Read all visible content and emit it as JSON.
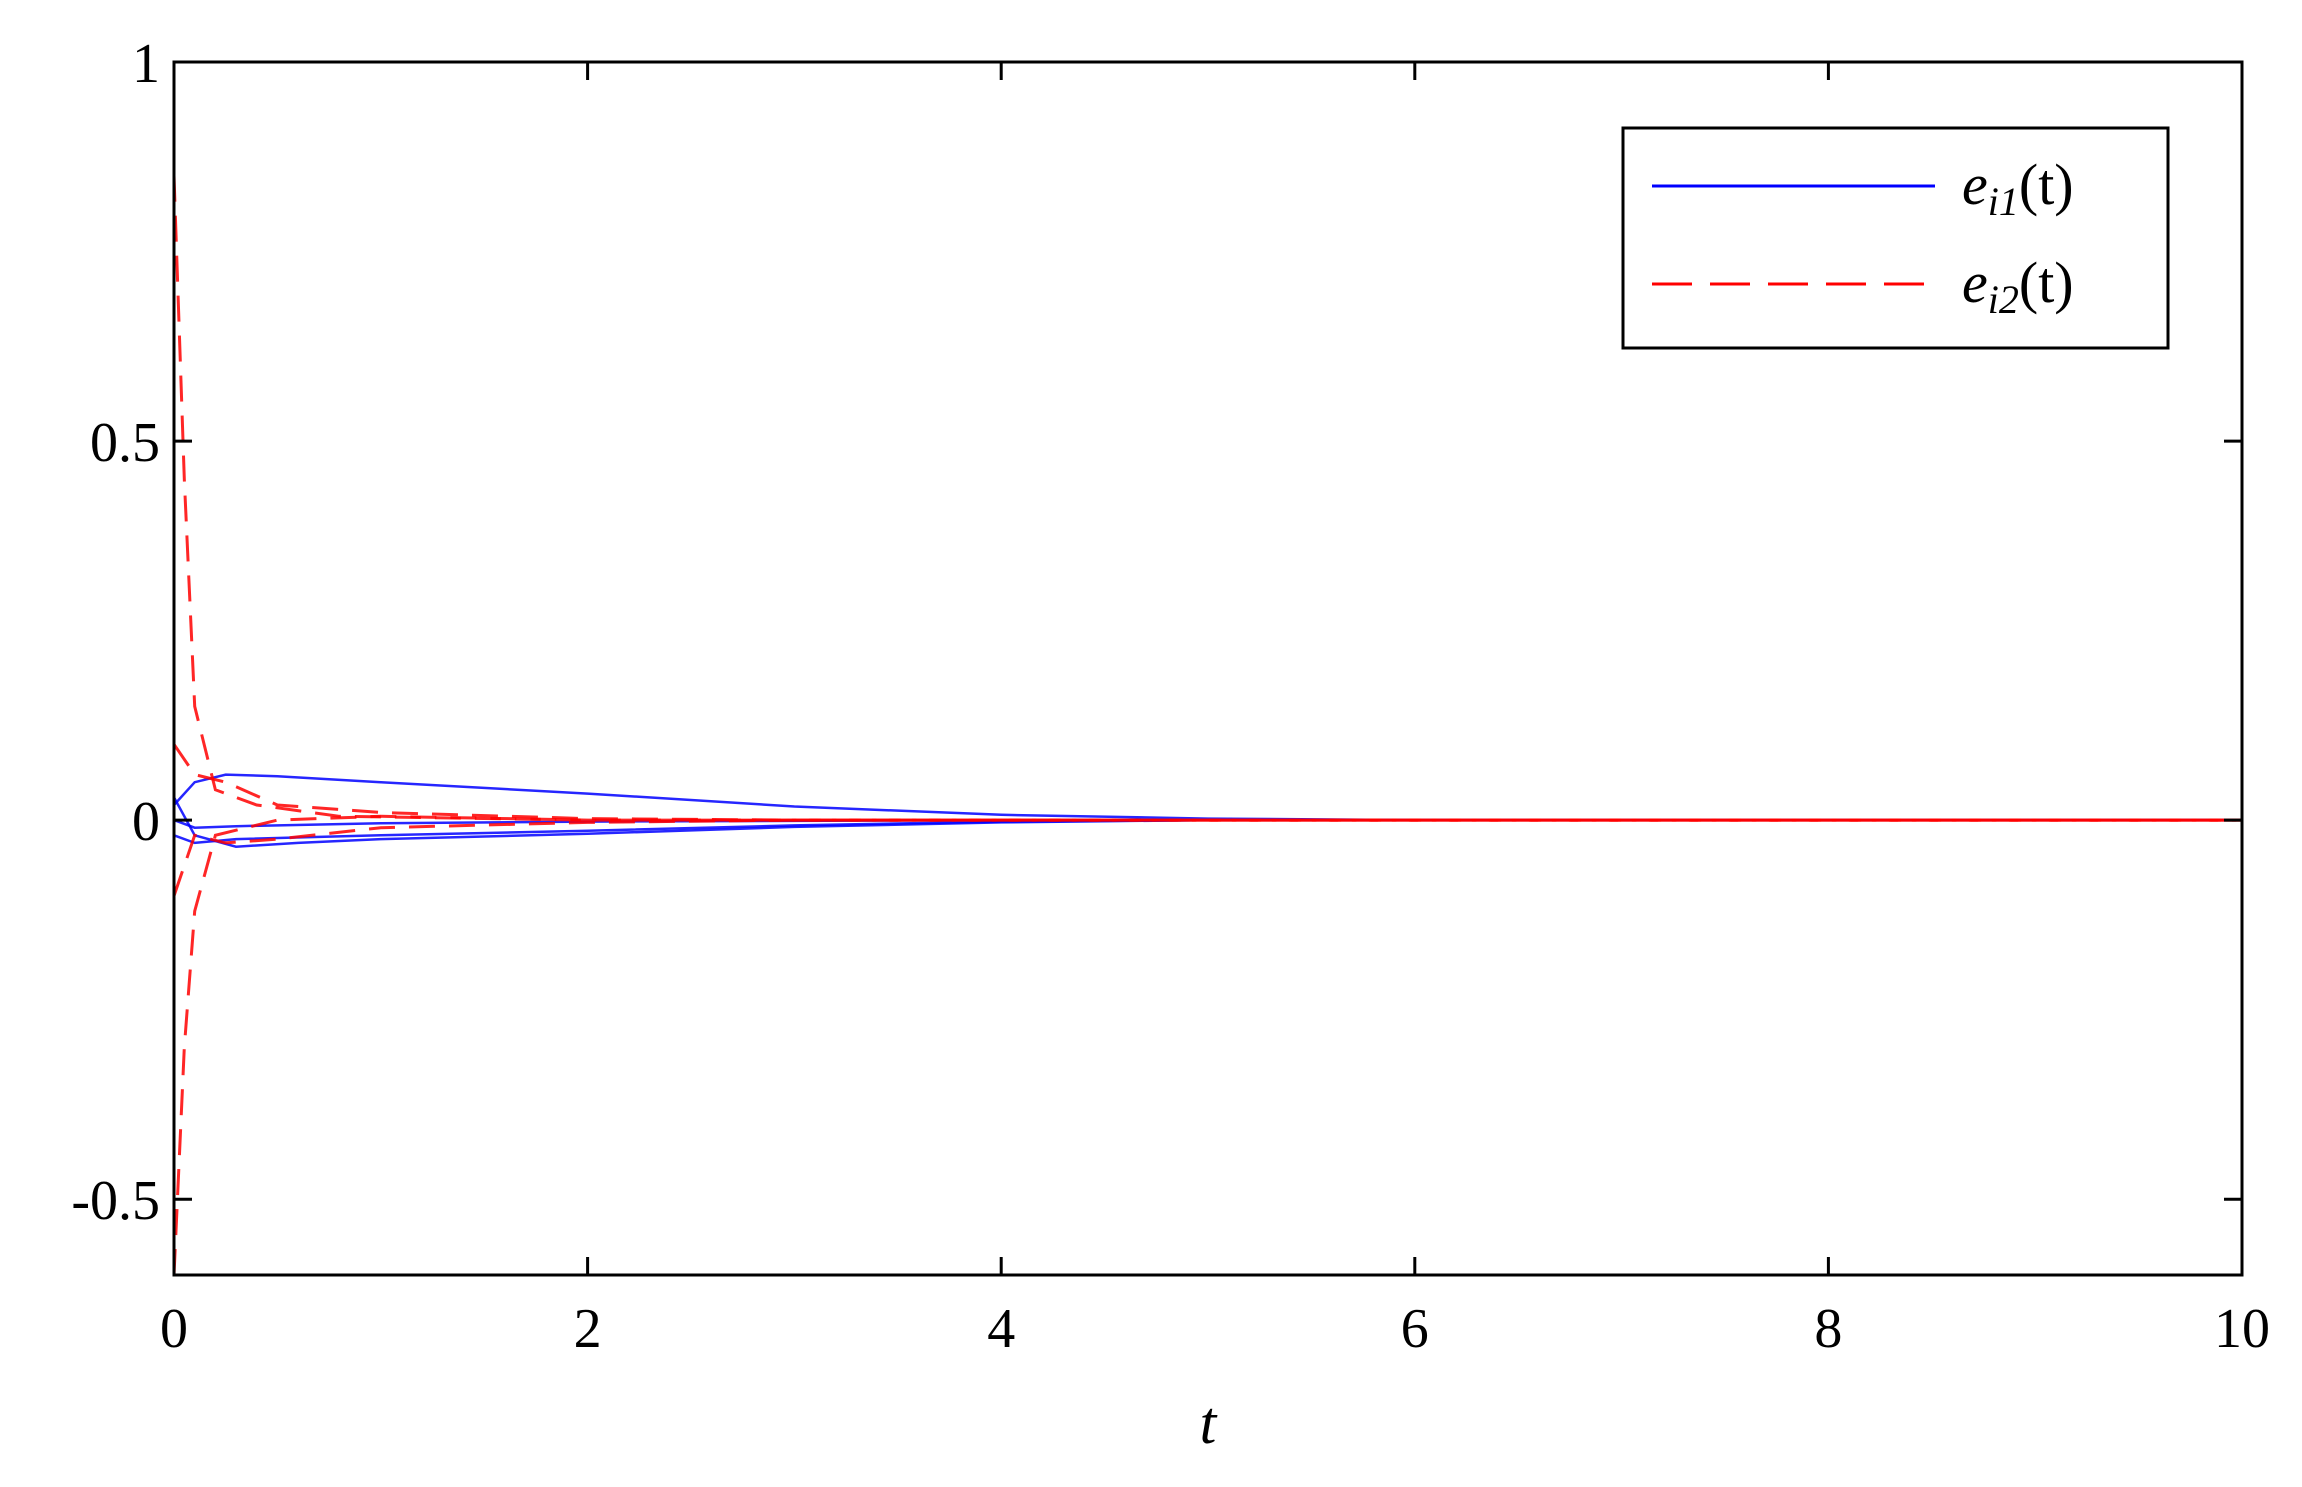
{
  "chart_data": {
    "type": "line",
    "xlabel": "t",
    "ylabel": "",
    "xlim": [
      0,
      10
    ],
    "ylim": [
      -0.6,
      1
    ],
    "xticks": [
      0,
      2,
      4,
      6,
      8,
      10
    ],
    "xtick_labels": [
      "0",
      "2",
      "4",
      "6",
      "8",
      "10"
    ],
    "yticks": [
      -0.5,
      0,
      0.5,
      1
    ],
    "ytick_labels": [
      "-0.5",
      "0",
      "0.5",
      "1"
    ],
    "grid": false,
    "legend_position": "top-right",
    "legend": [
      {
        "label_base": "e",
        "label_sub": "i1",
        "label_tail": "(t)",
        "color": "#0000ff",
        "style": "solid"
      },
      {
        "label_base": "e",
        "label_sub": "i2",
        "label_tail": "(t)",
        "color": "#ff0000",
        "style": "dashed"
      }
    ],
    "series": [
      {
        "group": "e_i1",
        "color": "#0000ff",
        "style": "solid",
        "points": [
          [
            0,
            0.02
          ],
          [
            0.1,
            0.05
          ],
          [
            0.25,
            0.06
          ],
          [
            0.5,
            0.058
          ],
          [
            1,
            0.05
          ],
          [
            2,
            0.035
          ],
          [
            3,
            0.018
          ],
          [
            4,
            0.007
          ],
          [
            5,
            0.002
          ],
          [
            6,
            0
          ],
          [
            10,
            0
          ]
        ]
      },
      {
        "group": "e_i1",
        "color": "#0000ff",
        "style": "solid",
        "points": [
          [
            0,
            0.0
          ],
          [
            0.1,
            -0.01
          ],
          [
            0.3,
            -0.008
          ],
          [
            1,
            -0.004
          ],
          [
            2,
            -0.002
          ],
          [
            4,
            0
          ],
          [
            10,
            0
          ]
        ]
      },
      {
        "group": "e_i1",
        "color": "#0000ff",
        "style": "solid",
        "points": [
          [
            0,
            -0.02
          ],
          [
            0.1,
            -0.03
          ],
          [
            0.3,
            -0.025
          ],
          [
            1,
            -0.02
          ],
          [
            2,
            -0.014
          ],
          [
            3,
            -0.007
          ],
          [
            4,
            -0.002
          ],
          [
            5,
            0
          ],
          [
            10,
            0
          ]
        ]
      },
      {
        "group": "e_i1",
        "color": "#0000ff",
        "style": "solid",
        "points": [
          [
            0,
            0.03
          ],
          [
            0.1,
            -0.02
          ],
          [
            0.3,
            -0.035
          ],
          [
            0.6,
            -0.03
          ],
          [
            1,
            -0.025
          ],
          [
            2,
            -0.018
          ],
          [
            3,
            -0.009
          ],
          [
            4,
            -0.003
          ],
          [
            5,
            0
          ],
          [
            10,
            0
          ]
        ]
      },
      {
        "group": "e_i2",
        "color": "#ff0000",
        "style": "dashed",
        "points": [
          [
            0,
            0.85
          ],
          [
            0.05,
            0.45
          ],
          [
            0.1,
            0.15
          ],
          [
            0.2,
            0.04
          ],
          [
            0.4,
            0.02
          ],
          [
            0.8,
            0.005
          ],
          [
            2,
            0
          ],
          [
            10,
            0
          ]
        ]
      },
      {
        "group": "e_i2",
        "color": "#ff0000",
        "style": "dashed",
        "points": [
          [
            0,
            -0.6
          ],
          [
            0.05,
            -0.3
          ],
          [
            0.1,
            -0.12
          ],
          [
            0.2,
            -0.02
          ],
          [
            0.5,
            0
          ],
          [
            1,
            0.005
          ],
          [
            2,
            0
          ],
          [
            10,
            0
          ]
        ]
      },
      {
        "group": "e_i2",
        "color": "#ff0000",
        "style": "dashed",
        "points": [
          [
            0,
            0.1
          ],
          [
            0.1,
            0.06
          ],
          [
            0.25,
            0.05
          ],
          [
            0.5,
            0.02
          ],
          [
            1,
            0.01
          ],
          [
            2,
            0.002
          ],
          [
            3,
            0
          ],
          [
            10,
            0
          ]
        ]
      },
      {
        "group": "e_i2",
        "color": "#ff0000",
        "style": "dashed",
        "points": [
          [
            0,
            -0.1
          ],
          [
            0.1,
            -0.02
          ],
          [
            0.25,
            -0.03
          ],
          [
            0.5,
            -0.025
          ],
          [
            1,
            -0.01
          ],
          [
            2,
            -0.003
          ],
          [
            3,
            0
          ],
          [
            10,
            0
          ]
        ]
      }
    ]
  }
}
